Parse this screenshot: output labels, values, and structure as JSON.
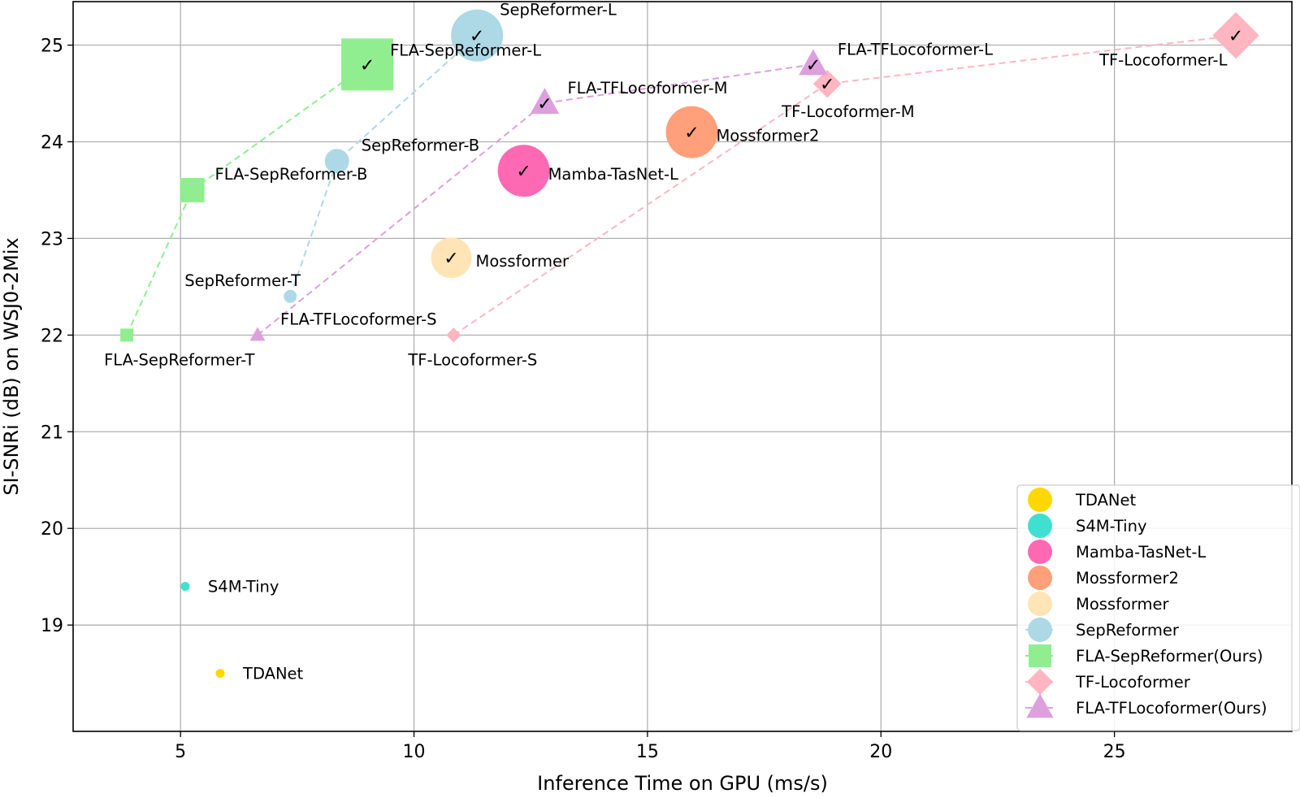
{
  "chart_data": {
    "type": "scatter",
    "xlabel": "Inference Time on GPU (ms/s)",
    "ylabel": "SI-SNRi (dB) on WSJ0-2Mix",
    "xlim": [
      2.7,
      28.8
    ],
    "ylim": [
      17.9,
      25.45
    ],
    "xticks": [
      5,
      10,
      15,
      20,
      25
    ],
    "yticks": [
      19,
      20,
      21,
      22,
      23,
      24,
      25
    ],
    "grid": true,
    "legend_position": "lower-right",
    "series": [
      {
        "name": "TDANet",
        "color": "#FFD700",
        "marker": "circle",
        "line": false,
        "points": [
          {
            "label": "TDANet",
            "x": 5.85,
            "y": 18.5,
            "size": "xs",
            "check": false
          }
        ]
      },
      {
        "name": "S4M-Tiny",
        "color": "#40E0D0",
        "marker": "circle",
        "line": false,
        "points": [
          {
            "label": "S4M-Tiny",
            "x": 5.1,
            "y": 19.4,
            "size": "xs",
            "check": false
          }
        ]
      },
      {
        "name": "Mamba-TasNet-L",
        "color": "#FF69B4",
        "marker": "circle",
        "line": false,
        "points": [
          {
            "label": "Mamba-TasNet-L",
            "x": 12.35,
            "y": 23.7,
            "size": "xl",
            "check": true
          }
        ]
      },
      {
        "name": "Mossformer2",
        "color": "#FFA07A",
        "marker": "circle",
        "line": false,
        "points": [
          {
            "label": "Mossformer2",
            "x": 15.95,
            "y": 24.1,
            "size": "xl",
            "check": true
          }
        ]
      },
      {
        "name": "Mossformer",
        "color": "#FFE4B5",
        "marker": "circle",
        "line": false,
        "points": [
          {
            "label": "Mossformer",
            "x": 10.8,
            "y": 22.8,
            "size": "l",
            "check": true
          }
        ]
      },
      {
        "name": "SepReformer",
        "color": "#ADD8E6",
        "marker": "circle",
        "line": true,
        "points": [
          {
            "label": "SepReformer-T",
            "x": 7.35,
            "y": 22.4,
            "size": "s",
            "check": false
          },
          {
            "label": "SepReformer-B",
            "x": 8.35,
            "y": 23.8,
            "size": "m",
            "check": false
          },
          {
            "label": "SepReformer-L",
            "x": 11.35,
            "y": 25.1,
            "size": "xl",
            "check": true
          }
        ]
      },
      {
        "name": "FLA-SepReformer(Ours)",
        "color": "#90EE90",
        "marker": "square",
        "line": true,
        "points": [
          {
            "label": "FLA-SepReformer-T",
            "x": 3.85,
            "y": 22.0,
            "size": "s",
            "check": false
          },
          {
            "label": "FLA-SepReformer-B",
            "x": 5.25,
            "y": 23.5,
            "size": "m",
            "check": false
          },
          {
            "label": "FLA-SepReformer-L",
            "x": 9.0,
            "y": 24.8,
            "size": "xl",
            "check": true
          }
        ]
      },
      {
        "name": "TF-Locoformer",
        "color": "#FFB6C1",
        "marker": "diamond",
        "line": true,
        "points": [
          {
            "label": "TF-Locoformer-S",
            "x": 10.85,
            "y": 22.0,
            "size": "s",
            "check": false
          },
          {
            "label": "TF-Locoformer-M",
            "x": 18.85,
            "y": 24.6,
            "size": "m",
            "check": true
          },
          {
            "label": "TF-Locoformer-L",
            "x": 27.6,
            "y": 25.1,
            "size": "l",
            "check": true
          }
        ]
      },
      {
        "name": "FLA-TFLocoformer(Ours)",
        "color": "#DDA0DD",
        "marker": "triangle",
        "line": true,
        "points": [
          {
            "label": "FLA-TFLocoformer-S",
            "x": 6.65,
            "y": 22.0,
            "size": "s",
            "check": false
          },
          {
            "label": "FLA-TFLocoformer-M",
            "x": 12.8,
            "y": 24.4,
            "size": "m",
            "check": true
          },
          {
            "label": "FLA-TFLocoformer-L",
            "x": 18.55,
            "y": 24.8,
            "size": "m",
            "check": true
          }
        ]
      }
    ]
  }
}
